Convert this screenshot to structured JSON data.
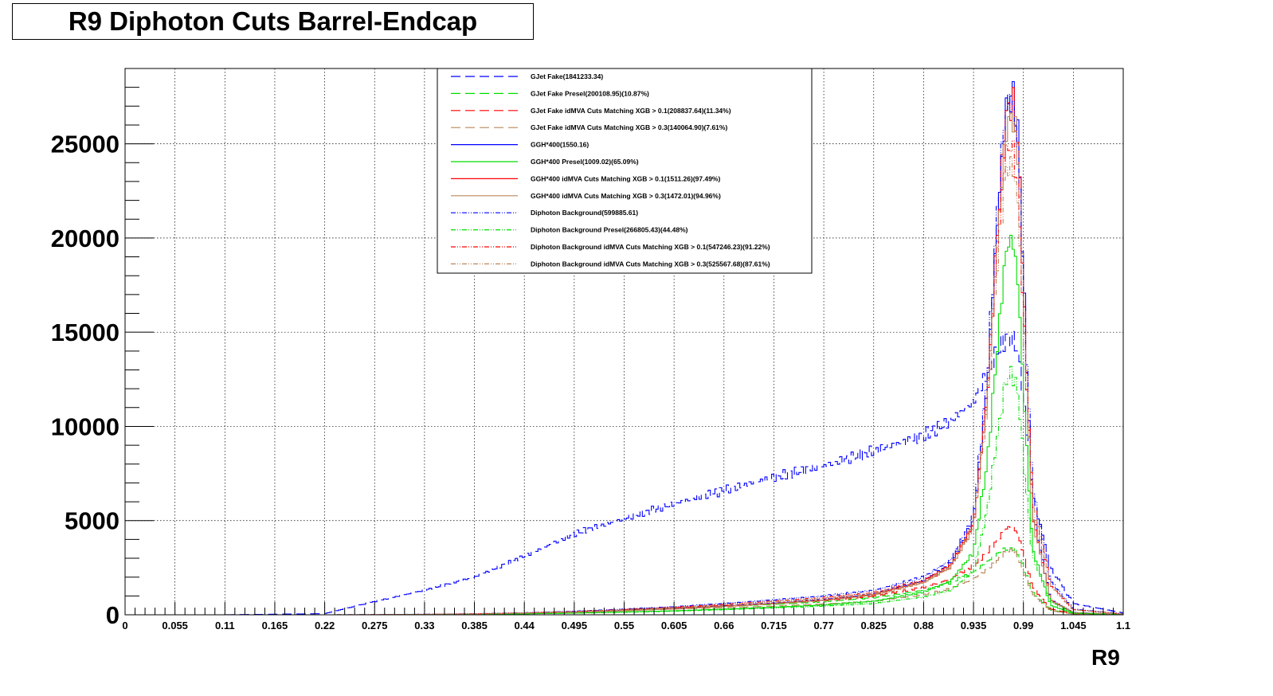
{
  "title": "R9 Diphoton Cuts Barrel-Endcap",
  "chart_data": {
    "type": "line",
    "title": "R9 Diphoton Cuts Barrel-Endcap",
    "xlabel": "R9",
    "ylabel": "",
    "xlim": [
      0,
      1.1
    ],
    "ylim": [
      0,
      29000
    ],
    "grid": true,
    "legend_position": "top-center",
    "x_ticks": [
      "0",
      "0.055",
      "0.11",
      "0.165",
      "0.22",
      "0.275",
      "0.33",
      "0.385",
      "0.44",
      "0.495",
      "0.55",
      "0.605",
      "0.66",
      "0.715",
      "0.77",
      "0.825",
      "0.88",
      "0.935",
      "0.99",
      "1.045",
      "1.1"
    ],
    "y_ticks": [
      "0",
      "5000",
      "10000",
      "15000",
      "20000",
      "25000"
    ],
    "x": [
      0.165,
      0.22,
      0.275,
      0.33,
      0.385,
      0.44,
      0.495,
      0.55,
      0.605,
      0.66,
      0.715,
      0.77,
      0.825,
      0.88,
      0.91,
      0.935,
      0.95,
      0.96,
      0.97,
      0.975,
      0.98,
      0.985,
      0.99,
      1.0,
      1.02,
      1.045,
      1.1
    ],
    "series": [
      {
        "name": "GJet Fake(1841233.34)",
        "color": "#0000ff",
        "dash": "longdash",
        "values": [
          30,
          60,
          700,
          1300,
          2000,
          3100,
          4300,
          5100,
          5900,
          6600,
          7300,
          7900,
          8700,
          9500,
          10300,
          11300,
          12800,
          13900,
          14600,
          14700,
          14500,
          13800,
          11500,
          6500,
          2500,
          600,
          100
        ]
      },
      {
        "name": "GJet Fake Presel(200108.95)(10.87%)",
        "color": "#00dd00",
        "dash": "longdash",
        "values": [
          0,
          0,
          0,
          0,
          30,
          80,
          150,
          250,
          350,
          450,
          550,
          700,
          900,
          1300,
          1700,
          2300,
          2800,
          3200,
          3500,
          3550,
          3500,
          3200,
          2500,
          1200,
          250,
          50,
          0
        ]
      },
      {
        "name": "GJet Fake idMVA Cuts Matching XGB > 0.1(208837.64)(11.34%)",
        "color": "#ff0000",
        "dash": "longdash",
        "values": [
          0,
          0,
          0,
          0,
          40,
          90,
          170,
          280,
          380,
          490,
          600,
          760,
          980,
          1450,
          1900,
          2600,
          3300,
          3900,
          4500,
          4700,
          4600,
          4200,
          3200,
          1500,
          300,
          60,
          0
        ]
      },
      {
        "name": "GJet Fake idMVA Cuts Matching XGB > 0.3(140064.90)(7.61%)",
        "color": "#b8865b",
        "dash": "longdash",
        "values": [
          0,
          0,
          0,
          0,
          30,
          70,
          130,
          220,
          300,
          380,
          460,
          570,
          720,
          1050,
          1400,
          1900,
          2400,
          2800,
          3300,
          3400,
          3350,
          3000,
          2300,
          1100,
          220,
          40,
          0
        ]
      },
      {
        "name": "GGH*400(1550.16)",
        "color": "#0000ff",
        "dash": "solid",
        "values": [
          0,
          0,
          0,
          20,
          40,
          80,
          140,
          230,
          330,
          460,
          620,
          800,
          1100,
          1800,
          2700,
          5000,
          12000,
          20000,
          26500,
          27800,
          27500,
          25000,
          18000,
          5500,
          800,
          120,
          20
        ]
      },
      {
        "name": "GGH*400 Presel(1009.02)(65.09%)",
        "color": "#00dd00",
        "dash": "solid",
        "values": [
          0,
          0,
          0,
          10,
          25,
          50,
          90,
          150,
          210,
          300,
          400,
          520,
          720,
          1200,
          1800,
          3300,
          8000,
          13500,
          19000,
          20000,
          19500,
          17000,
          12000,
          3500,
          500,
          80,
          10
        ]
      },
      {
        "name": "GGH*400 idMVA Cuts Matching XGB > 0.1(1511.26)(97.49%)",
        "color": "#ff0000",
        "dash": "solid",
        "values": [
          0,
          0,
          0,
          20,
          40,
          80,
          135,
          225,
          320,
          450,
          600,
          780,
          1070,
          1750,
          2600,
          4800,
          11600,
          19500,
          26000,
          27200,
          26900,
          24500,
          17500,
          5300,
          780,
          110,
          20
        ]
      },
      {
        "name": "GGH*400 idMVA Cuts Matching XGB > 0.3(1472.01)(94.96%)",
        "color": "#b8865b",
        "dash": "solid",
        "values": [
          0,
          0,
          0,
          20,
          40,
          75,
          130,
          220,
          310,
          440,
          590,
          760,
          1040,
          1700,
          2550,
          4700,
          11300,
          19000,
          25300,
          26500,
          26200,
          23900,
          17000,
          5100,
          760,
          110,
          20
        ]
      },
      {
        "name": "Diphoton Background(599885.61)",
        "color": "#0000ff",
        "dash": "dashdot",
        "values": [
          0,
          0,
          10,
          30,
          60,
          110,
          190,
          300,
          430,
          600,
          790,
          1000,
          1300,
          2000,
          2900,
          5200,
          12500,
          20500,
          26800,
          27300,
          26800,
          24200,
          17500,
          6800,
          1800,
          300,
          50
        ]
      },
      {
        "name": "Diphoton Background Presel(266805.43)(44.48%)",
        "color": "#00dd00",
        "dash": "dashdot",
        "values": [
          0,
          0,
          0,
          10,
          25,
          50,
          85,
          130,
          190,
          270,
          360,
          460,
          600,
          950,
          1300,
          2300,
          5500,
          9000,
          12300,
          12800,
          12600,
          11400,
          8300,
          3100,
          700,
          100,
          20
        ]
      },
      {
        "name": "Diphoton Background idMVA Cuts Matching XGB > 0.1(547246.23)(91.22%)",
        "color": "#ff0000",
        "dash": "dashdot",
        "values": [
          0,
          0,
          10,
          25,
          55,
          100,
          175,
          275,
          395,
          550,
          720,
          910,
          1180,
          1830,
          2650,
          4750,
          11400,
          18700,
          24500,
          24900,
          24500,
          22100,
          16000,
          6200,
          1600,
          270,
          45
        ]
      },
      {
        "name": "Diphoton Background idMVA Cuts Matching XGB > 0.3(525567.68)(87.61%)",
        "color": "#b8865b",
        "dash": "dashdot",
        "values": [
          0,
          0,
          10,
          25,
          50,
          95,
          165,
          260,
          375,
          525,
          690,
          870,
          1130,
          1750,
          2540,
          4560,
          10950,
          17950,
          23500,
          23900,
          23500,
          21200,
          15350,
          5950,
          1550,
          260,
          45
        ]
      }
    ]
  }
}
